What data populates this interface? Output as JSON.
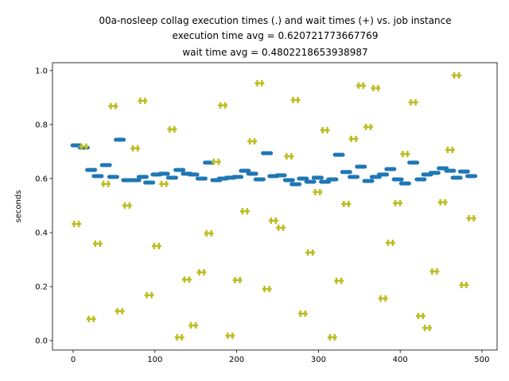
{
  "chart_data": {
    "type": "scatter",
    "title_lines": [
      "00a-nosleep collag execution times (.) and wait times (+) vs. job instance",
      "execution time avg = 0.620721773667769",
      "wait time avg = 0.4802218653938987"
    ],
    "ylabel": "seconds",
    "xlim": [
      -25.3,
      518.5
    ],
    "ylim": [
      -0.035,
      1.029
    ],
    "xticks": [
      0,
      100,
      200,
      300,
      400,
      500
    ],
    "yticks": [
      {
        "value": 0,
        "label": "0.0"
      },
      0.2,
      0.4,
      0.6,
      0.8,
      {
        "value": 1,
        "label": "1.0"
      }
    ],
    "x": [
      4,
      13,
      22,
      30,
      40,
      49,
      57,
      66,
      76,
      85,
      93,
      102,
      111,
      121,
      130,
      139,
      147,
      157,
      166,
      175,
      183,
      192,
      201,
      210,
      219,
      228,
      237,
      245,
      254,
      264,
      272,
      281,
      290,
      299,
      308,
      317,
      325,
      334,
      343,
      352,
      361,
      370,
      379,
      388,
      397,
      406,
      416,
      425,
      433,
      442,
      452,
      461,
      469,
      478,
      487
    ],
    "series": [
      {
        "marker": "_",
        "color": "#1f77b4",
        "values": [
          0.723,
          0.715,
          0.632,
          0.609,
          0.65,
          0.606,
          0.744,
          0.594,
          0.594,
          0.606,
          0.585,
          0.615,
          0.618,
          0.603,
          0.632,
          0.618,
          0.615,
          0.6,
          0.659,
          0.594,
          0.6,
          0.603,
          0.606,
          0.629,
          0.618,
          0.597,
          0.694,
          0.609,
          0.612,
          0.594,
          0.579,
          0.6,
          0.588,
          0.603,
          0.588,
          0.597,
          0.688,
          0.624,
          0.606,
          0.644,
          0.591,
          0.606,
          0.615,
          0.635,
          0.597,
          0.582,
          0.659,
          0.597,
          0.615,
          0.621,
          0.638,
          0.629,
          0.603,
          0.626,
          0.609
        ]
      },
      {
        "marker": "+",
        "color": "#bcbd22",
        "values": [
          0.432,
          0.718,
          0.08,
          0.359,
          0.58,
          0.868,
          0.109,
          0.5,
          0.712,
          0.888,
          0.168,
          0.35,
          0.58,
          0.782,
          0.012,
          0.226,
          0.056,
          0.253,
          0.397,
          0.662,
          0.871,
          0.018,
          0.224,
          0.479,
          0.738,
          0.953,
          0.191,
          0.444,
          0.418,
          0.682,
          0.891,
          0.1,
          0.326,
          0.55,
          0.779,
          0.012,
          0.221,
          0.506,
          0.747,
          0.944,
          0.791,
          0.935,
          0.156,
          0.362,
          0.509,
          0.691,
          0.882,
          0.091,
          0.047,
          0.256,
          0.512,
          0.706,
          0.982,
          0.206,
          0.453
        ]
      }
    ]
  }
}
